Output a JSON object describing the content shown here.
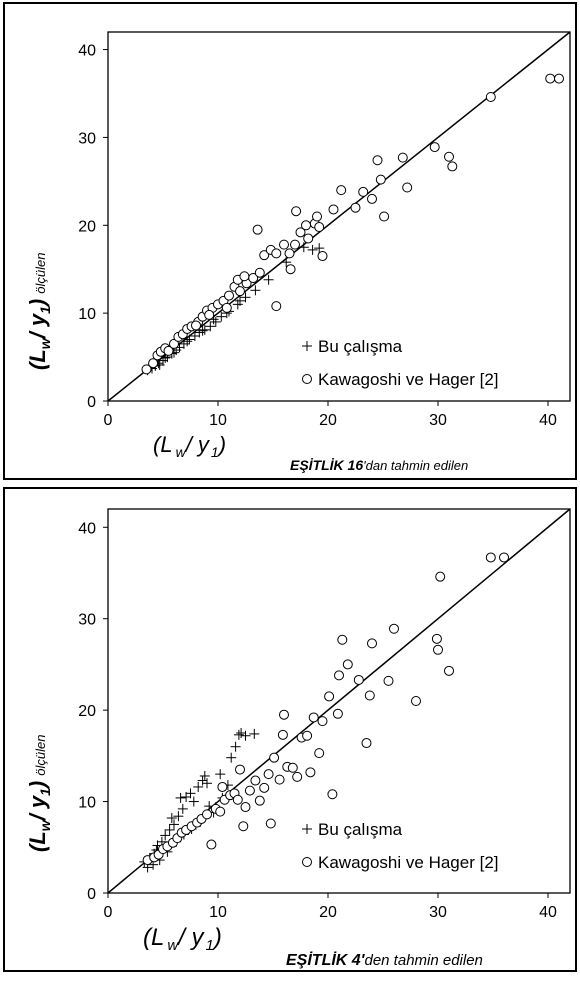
{
  "chart_data": [
    {
      "type": "scatter",
      "xlim": [
        0,
        42
      ],
      "ylim": [
        0,
        42
      ],
      "x_ticks": [
        "0",
        "10",
        "20",
        "30",
        "40"
      ],
      "y_ticks": [
        "0",
        "10",
        "20",
        "30",
        "40"
      ],
      "ylabel_main": "(L",
      "ylabel_sub1": "w",
      "ylabel_mid": "/  y",
      "ylabel_sub2": "1",
      "ylabel_end": ")",
      "ylabel_suffix": "ölçülen",
      "xlabel_main": "(L",
      "xlabel_sub1": "w",
      "xlabel_mid": "/ y",
      "xlabel_sub2": "1",
      "xlabel_end": ")",
      "xlabel_eq": "EŞİTLİK 16",
      "xlabel_suffix": "'dan tahmin edilen",
      "reference_line": [
        [
          0,
          0
        ],
        [
          42,
          42
        ]
      ],
      "legend_placement": "bottom-right",
      "series": [
        {
          "name": "Bu çalışma",
          "marker": "plus",
          "points": [
            [
              3.6,
              3.5
            ],
            [
              4.0,
              3.7
            ],
            [
              4.3,
              4.0
            ],
            [
              4.6,
              4.3
            ],
            [
              5.0,
              4.6
            ],
            [
              5.4,
              5.0
            ],
            [
              5.8,
              5.4
            ],
            [
              6.2,
              5.8
            ],
            [
              6.5,
              6.1
            ],
            [
              6.9,
              6.5
            ],
            [
              7.4,
              7.0
            ],
            [
              7.9,
              7.4
            ],
            [
              8.3,
              7.8
            ],
            [
              8.8,
              8.1
            ],
            [
              9.3,
              8.5
            ],
            [
              9.8,
              9.0
            ],
            [
              10.3,
              9.6
            ],
            [
              11.0,
              10.2
            ],
            [
              11.8,
              11.0
            ],
            [
              12.5,
              11.8
            ],
            [
              13.4,
              12.6
            ],
            [
              14.6,
              13.8
            ],
            [
              16.2,
              15.8
            ],
            [
              17.8,
              17.5
            ],
            [
              18.6,
              17.2
            ],
            [
              19.2,
              17.4
            ],
            [
              4.7,
              4.1
            ],
            [
              5.2,
              4.9
            ],
            [
              6.0,
              5.5
            ],
            [
              7.2,
              6.8
            ],
            [
              8.6,
              8.0
            ],
            [
              9.6,
              9.3
            ],
            [
              10.8,
              10.0
            ],
            [
              12.0,
              11.4
            ]
          ]
        },
        {
          "name": "Kawagoshi ve Hager [2]",
          "marker": "circle",
          "points": [
            [
              3.5,
              3.6
            ],
            [
              4.1,
              4.3
            ],
            [
              4.5,
              5.2
            ],
            [
              4.8,
              5.6
            ],
            [
              5.2,
              6.0
            ],
            [
              5.5,
              5.7
            ],
            [
              6.0,
              6.5
            ],
            [
              6.4,
              7.3
            ],
            [
              6.8,
              7.6
            ],
            [
              7.2,
              8.2
            ],
            [
              7.6,
              8.5
            ],
            [
              8.2,
              9.0
            ],
            [
              8.6,
              9.6
            ],
            [
              9.0,
              10.3
            ],
            [
              9.5,
              10.6
            ],
            [
              10.0,
              11.0
            ],
            [
              10.5,
              11.4
            ],
            [
              11.0,
              12.0
            ],
            [
              11.5,
              13.0
            ],
            [
              12.0,
              12.5
            ],
            [
              12.6,
              13.4
            ],
            [
              13.2,
              14.0
            ],
            [
              13.8,
              14.6
            ],
            [
              14.2,
              16.6
            ],
            [
              14.8,
              17.2
            ],
            [
              15.3,
              16.8
            ],
            [
              16.0,
              17.8
            ],
            [
              16.5,
              16.8
            ],
            [
              17.0,
              17.8
            ],
            [
              17.5,
              19.2
            ],
            [
              18.2,
              18.5
            ],
            [
              18.8,
              20.2
            ],
            [
              19.2,
              19.8
            ],
            [
              19.5,
              16.5
            ],
            [
              13.6,
              19.5
            ],
            [
              15.3,
              10.8
            ],
            [
              16.6,
              15.0
            ],
            [
              17.1,
              21.6
            ],
            [
              18.0,
              20.0
            ],
            [
              19.0,
              21.0
            ],
            [
              20.5,
              21.8
            ],
            [
              21.2,
              24.0
            ],
            [
              22.5,
              22.0
            ],
            [
              23.2,
              23.8
            ],
            [
              24.0,
              23.0
            ],
            [
              24.5,
              27.4
            ],
            [
              24.8,
              25.2
            ],
            [
              25.1,
              21.0
            ],
            [
              26.8,
              27.7
            ],
            [
              27.2,
              24.3
            ],
            [
              29.7,
              28.9
            ],
            [
              31.0,
              27.8
            ],
            [
              31.3,
              26.7
            ],
            [
              34.8,
              34.6
            ],
            [
              40.2,
              36.7
            ],
            [
              41.0,
              36.7
            ],
            [
              11.8,
              13.8
            ],
            [
              12.4,
              14.2
            ],
            [
              10.8,
              10.6
            ],
            [
              9.2,
              9.8
            ],
            [
              8.0,
              8.6
            ]
          ]
        }
      ]
    },
    {
      "type": "scatter",
      "xlim": [
        0,
        42
      ],
      "ylim": [
        0,
        42
      ],
      "x_ticks": [
        "0",
        "10",
        "20",
        "30",
        "40"
      ],
      "y_ticks": [
        "0",
        "10",
        "20",
        "30",
        "40"
      ],
      "ylabel_main": "(L",
      "ylabel_sub1": "w",
      "ylabel_mid": "/ y",
      "ylabel_sub2": "1",
      "ylabel_end": ")",
      "ylabel_suffix": "ölçülen",
      "xlabel_main": "(L",
      "xlabel_sub1": "w",
      "xlabel_mid": "/ y",
      "xlabel_sub2": "1",
      "xlabel_end": ")",
      "xlabel_eq": "EŞİTLİK 4'",
      "xlabel_suffix": "den tahmin edilen",
      "reference_line": [
        [
          0,
          0
        ],
        [
          42,
          42
        ]
      ],
      "legend_placement": "bottom-right",
      "series": [
        {
          "name": "Bu çalışma",
          "marker": "plus",
          "points": [
            [
              3.3,
              3.4
            ],
            [
              3.8,
              3.8
            ],
            [
              4.2,
              4.3
            ],
            [
              4.5,
              5.2
            ],
            [
              4.9,
              5.6
            ],
            [
              5.2,
              6.3
            ],
            [
              5.6,
              6.9
            ],
            [
              6.0,
              7.5
            ],
            [
              6.4,
              8.4
            ],
            [
              6.8,
              9.2
            ],
            [
              7.1,
              10.5
            ],
            [
              7.5,
              10.9
            ],
            [
              7.8,
              10.0
            ],
            [
              8.2,
              11.6
            ],
            [
              8.6,
              12.3
            ],
            [
              9.0,
              12.0
            ],
            [
              9.2,
              9.5
            ],
            [
              9.8,
              9.4
            ],
            [
              10.4,
              10.4
            ],
            [
              10.9,
              11.8
            ],
            [
              11.2,
              14.8
            ],
            [
              11.6,
              16.0
            ],
            [
              11.9,
              17.3
            ],
            [
              12.1,
              17.5
            ],
            [
              12.5,
              17.2
            ],
            [
              13.3,
              17.4
            ],
            [
              4.1,
              3.1
            ],
            [
              4.7,
              3.6
            ],
            [
              5.4,
              4.5
            ],
            [
              6.2,
              5.6
            ],
            [
              6.9,
              6.4
            ],
            [
              7.6,
              7.0
            ],
            [
              8.4,
              7.8
            ],
            [
              9.6,
              8.8
            ],
            [
              5.8,
              8.2
            ],
            [
              6.6,
              10.4
            ],
            [
              8.8,
              12.8
            ],
            [
              10.2,
              13.0
            ],
            [
              3.6,
              2.8
            ],
            [
              4.4,
              4.7
            ]
          ]
        },
        {
          "name": "Kawagoshi ve Hager [2]",
          "marker": "circle",
          "points": [
            [
              3.6,
              3.6
            ],
            [
              4.2,
              3.9
            ],
            [
              4.6,
              4.2
            ],
            [
              5.0,
              4.8
            ],
            [
              5.4,
              5.1
            ],
            [
              5.9,
              5.5
            ],
            [
              6.3,
              6.0
            ],
            [
              6.7,
              6.6
            ],
            [
              7.1,
              6.9
            ],
            [
              7.6,
              7.3
            ],
            [
              8.1,
              7.7
            ],
            [
              8.5,
              8.1
            ],
            [
              9.0,
              8.6
            ],
            [
              9.4,
              5.3
            ],
            [
              9.8,
              9.2
            ],
            [
              10.2,
              8.9
            ],
            [
              10.6,
              10.2
            ],
            [
              11.1,
              10.7
            ],
            [
              11.5,
              10.9
            ],
            [
              12.0,
              13.5
            ],
            [
              12.5,
              9.4
            ],
            [
              12.9,
              11.2
            ],
            [
              13.4,
              12.3
            ],
            [
              13.8,
              10.1
            ],
            [
              14.2,
              11.5
            ],
            [
              14.6,
              13.0
            ],
            [
              15.1,
              14.8
            ],
            [
              15.6,
              12.4
            ],
            [
              15.9,
              17.3
            ],
            [
              16.3,
              13.8
            ],
            [
              16.8,
              13.7
            ],
            [
              17.2,
              12.7
            ],
            [
              17.6,
              17.0
            ],
            [
              18.1,
              17.2
            ],
            [
              18.4,
              13.2
            ],
            [
              18.7,
              19.2
            ],
            [
              19.2,
              15.3
            ],
            [
              19.5,
              18.8
            ],
            [
              20.1,
              21.5
            ],
            [
              20.4,
              10.8
            ],
            [
              21.0,
              23.8
            ],
            [
              21.3,
              27.7
            ],
            [
              21.8,
              25.0
            ],
            [
              22.8,
              23.3
            ],
            [
              23.5,
              16.4
            ],
            [
              23.8,
              21.6
            ],
            [
              24.0,
              27.3
            ],
            [
              26.0,
              28.9
            ],
            [
              28.0,
              21.0
            ],
            [
              29.9,
              27.8
            ],
            [
              30.0,
              26.6
            ],
            [
              30.2,
              34.6
            ],
            [
              31.0,
              24.3
            ],
            [
              34.8,
              36.7
            ],
            [
              36.0,
              36.7
            ],
            [
              12.3,
              7.3
            ],
            [
              14.8,
              7.6
            ],
            [
              11.8,
              10.2
            ],
            [
              10.4,
              11.6
            ],
            [
              16.0,
              19.5
            ],
            [
              20.9,
              19.6
            ],
            [
              25.5,
              23.2
            ]
          ]
        }
      ]
    }
  ]
}
